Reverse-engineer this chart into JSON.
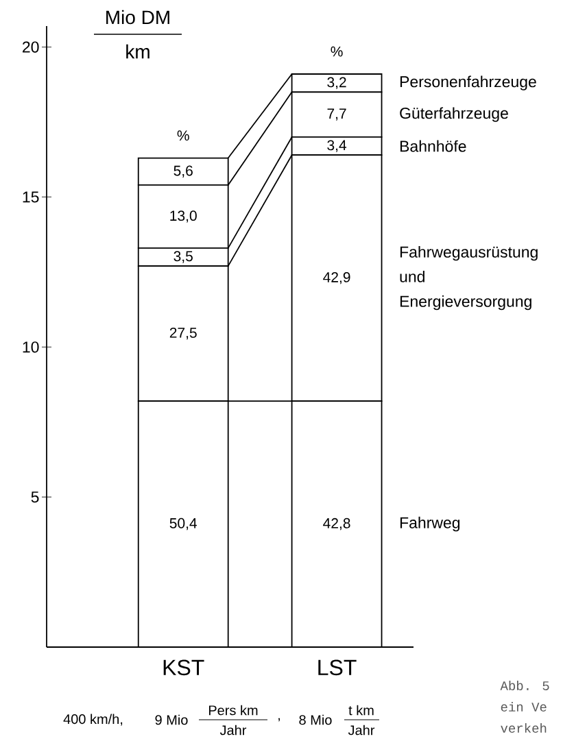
{
  "chart_data": {
    "type": "bar",
    "stacked": true,
    "ylabel": "Mio DM",
    "categories": [
      "KST",
      "LST"
    ],
    "ylim": [
      0,
      20.7
    ],
    "yticks": [
      5,
      10,
      15,
      20
    ],
    "series": [
      {
        "name": "Fahrweg",
        "color": "#ffffff",
        "values": [
          8.2,
          8.2
        ]
      },
      {
        "name": "Fahrwegausrüstung und Energieversorgung",
        "color": "#ffffff",
        "values": [
          4.5,
          8.2
        ]
      },
      {
        "name": "Bahnhöfe",
        "color": "#ffffff",
        "values": [
          0.6,
          0.6
        ]
      },
      {
        "name": "Güterfahrzeuge",
        "color": "#ffffff",
        "values": [
          2.1,
          1.5
        ]
      },
      {
        "name": "Personenfahrzeuge",
        "color": "#ffffff",
        "values": [
          0.9,
          0.6
        ]
      }
    ],
    "annotations": [
      "%",
      "%",
      "km",
      "400 km/h,",
      "9 Mio",
      "Pers km",
      "Jahr",
      ",",
      "8 Mio",
      "t km",
      "Jahr",
      "Abb. 5",
      "ein Ve",
      "verkeh",
      "50,4",
      "27,5",
      "3,5",
      "13,0",
      "5,6",
      "42,8",
      "42,9",
      "3,4",
      "7,7",
      "3,2"
    ]
  }
}
